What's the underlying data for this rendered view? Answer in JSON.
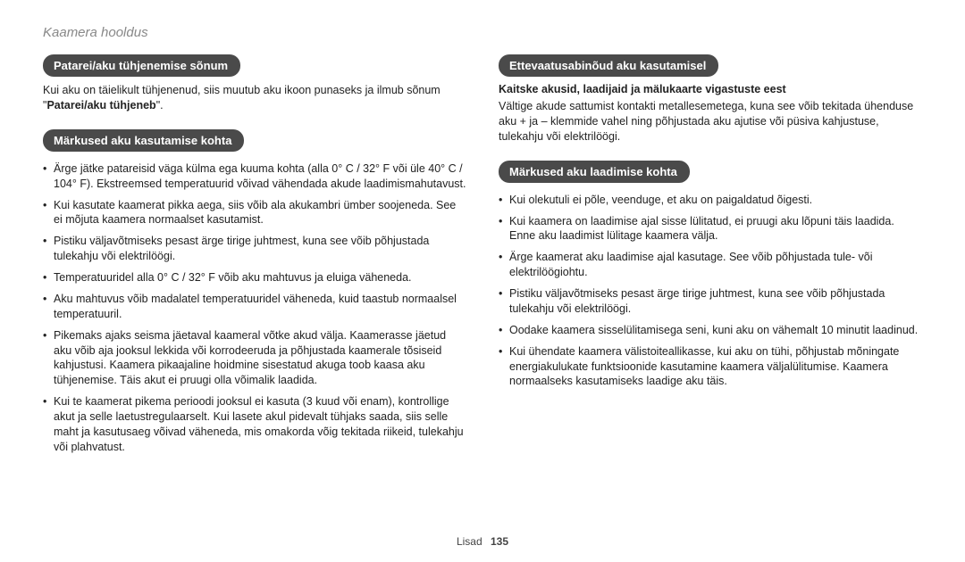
{
  "header": "Kaamera hooldus",
  "footer": {
    "label": "Lisad",
    "page": "135"
  },
  "left": {
    "s1": {
      "pill": "Patarei/aku tühjenemise sõnum",
      "text_a": "Kui aku on täielikult tühjenenud, siis muutub aku ikoon punaseks ja ilmub sõnum \"",
      "text_bold": "Patarei/aku tühjeneb",
      "text_b": "\"."
    },
    "s2": {
      "pill": "Märkused aku kasutamise kohta",
      "items": [
        "Ärge jätke patareisid väga külma ega kuuma kohta (alla 0° C / 32° F või üle 40° C / 104° F). Ekstreemsed temperatuurid võivad vähendada akude laadimismahutavust.",
        "Kui kasutate kaamerat pikka aega, siis võib ala akukambri ümber soojeneda. See ei mõjuta kaamera normaalset kasutamist.",
        "Pistiku väljavõtmiseks pesast ärge tirige juhtmest, kuna see võib põhjustada tulekahju või elektrilöögi.",
        "Temperatuuridel alla 0° C / 32° F võib aku mahtuvus ja eluiga väheneda.",
        "Aku mahtuvus võib madalatel temperatuuridel väheneda, kuid taastub normaalsel temperatuuril.",
        "Pikemaks ajaks seisma jäetaval kaameral võtke akud välja. Kaamerasse jäetud aku võib aja jooksul lekkida või korrodeeruda ja põhjustada kaamerale tõsiseid kahjustusi. Kaamera pikaajaline hoidmine sisestatud akuga toob kaasa aku tühjenemise. Täis akut ei pruugi olla võimalik laadida.",
        "Kui te kaamerat pikema perioodi jooksul ei kasuta (3 kuud või enam), kontrollige akut ja selle laetustregulaarselt. Kui lasete akul pidevalt tühjaks saada, siis selle maht ja kasutusaeg võivad väheneda, mis omakorda võig tekitada riikeid, tulekahju või plahvatust."
      ]
    }
  },
  "right": {
    "s1": {
      "pill": "Ettevaatusabinõud aku kasutamisel",
      "subhead": "Kaitske akusid, laadijaid ja mälukaarte vigastuste eest",
      "para": "Vältige akude sattumist kontakti metallesemetega, kuna see võib tekitada ühenduse aku + ja – klemmide vahel ning põhjustada aku ajutise või püsiva kahjustuse, tulekahju või elektrilöögi."
    },
    "s2": {
      "pill": "Märkused aku laadimise kohta",
      "items": [
        "Kui olekutuli ei põle, veenduge, et aku on paigaldatud õigesti.",
        "Kui kaamera on laadimise ajal sisse lülitatud, ei pruugi aku lõpuni täis laadida. Enne aku laadimist lülitage kaamera välja.",
        "Ärge kaamerat aku laadimise ajal kasutage. See võib põhjustada tule- või elektrilöögiohtu.",
        "Pistiku väljavõtmiseks pesast ärge tirige juhtmest, kuna see võib põhjustada tulekahju või elektrilöögi.",
        "Oodake kaamera sisselülitamisega seni, kuni aku on vähemalt 10 minutit laadinud.",
        "Kui ühendate kaamera välistoiteallikasse, kui aku on tühi, põhjustab mõningate energiakulukate funktsioonide kasutamine kaamera väljalülitumise. Kaamera normaalseks kasutamiseks laadige aku täis."
      ]
    }
  }
}
